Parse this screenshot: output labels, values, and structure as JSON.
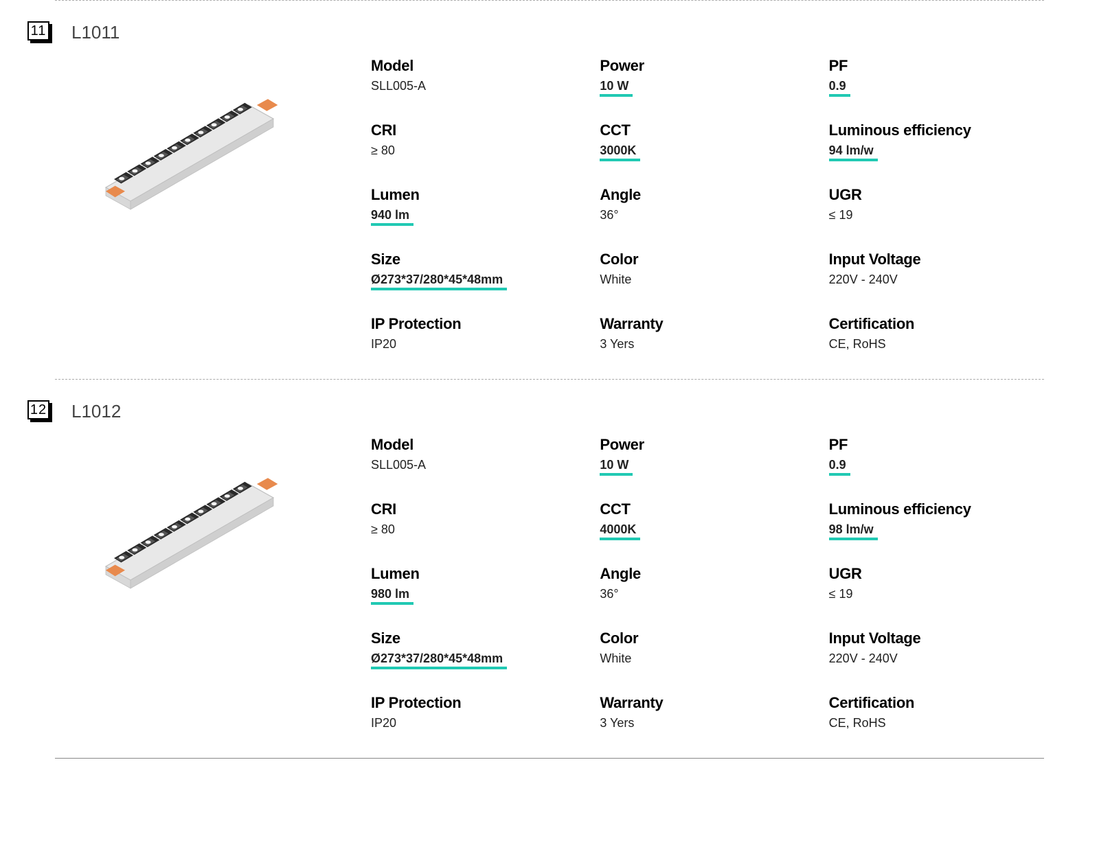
{
  "colors": {
    "highlight": "#21c9b3",
    "text": "#000000",
    "muted": "#444444",
    "body_fill": "#e8e8e8",
    "body_stroke": "#bfbfbf",
    "cell_dark": "#2a2a2a",
    "cell_mid": "#555555",
    "led": "#f5f5f5",
    "clip": "#e88a4d"
  },
  "spec_labels": {
    "model": "Model",
    "power": "Power",
    "pf": "PF",
    "cri": "CRI",
    "cct": "CCT",
    "lum_eff": "Luminous efficiency",
    "lumen": "Lumen",
    "angle": "Angle",
    "ugr": "UGR",
    "size": "Size",
    "color": "Color",
    "voltage": "Input Voltage",
    "ip": "IP Protection",
    "warranty": "Warranty",
    "cert": "Certification"
  },
  "products": [
    {
      "badge": "11",
      "code": "L1011",
      "specs": {
        "model": {
          "value": "SLL005-A",
          "hl": false
        },
        "power": {
          "value": "10 W",
          "hl": true
        },
        "pf": {
          "value": "0.9",
          "hl": true
        },
        "cri": {
          "value": "≥ 80",
          "hl": false
        },
        "cct": {
          "value": "3000K",
          "hl": true
        },
        "lum_eff": {
          "value": "94 lm/w",
          "hl": true
        },
        "lumen": {
          "value": "940 lm",
          "hl": true
        },
        "angle": {
          "value": "36°",
          "hl": false
        },
        "ugr": {
          "value": "≤ 19",
          "hl": false
        },
        "size": {
          "value": "Ø273*37/280*45*48mm",
          "hl": true
        },
        "color": {
          "value": "White",
          "hl": false
        },
        "voltage": {
          "value": "220V - 240V",
          "hl": false
        },
        "ip": {
          "value": "IP20",
          "hl": false
        },
        "warranty": {
          "value": "3 Yers",
          "hl": false
        },
        "cert": {
          "value": "CE, RoHS",
          "hl": false
        }
      }
    },
    {
      "badge": "12",
      "code": "L1012",
      "specs": {
        "model": {
          "value": "SLL005-A",
          "hl": false
        },
        "power": {
          "value": "10 W",
          "hl": true
        },
        "pf": {
          "value": "0.9",
          "hl": true
        },
        "cri": {
          "value": "≥ 80",
          "hl": false
        },
        "cct": {
          "value": "4000K",
          "hl": true
        },
        "lum_eff": {
          "value": "98 lm/w",
          "hl": true
        },
        "lumen": {
          "value": "980 lm",
          "hl": true
        },
        "angle": {
          "value": "36°",
          "hl": false
        },
        "ugr": {
          "value": "≤ 19",
          "hl": false
        },
        "size": {
          "value": "Ø273*37/280*45*48mm",
          "hl": true
        },
        "color": {
          "value": "White",
          "hl": false
        },
        "voltage": {
          "value": "220V - 240V",
          "hl": false
        },
        "ip": {
          "value": "IP20",
          "hl": false
        },
        "warranty": {
          "value": "3 Yers",
          "hl": false
        },
        "cert": {
          "value": "CE, RoHS",
          "hl": false
        }
      }
    }
  ],
  "spec_order": [
    "model",
    "power",
    "pf",
    "cri",
    "cct",
    "lum_eff",
    "lumen",
    "angle",
    "ugr",
    "size",
    "color",
    "voltage",
    "ip",
    "warranty",
    "cert"
  ]
}
